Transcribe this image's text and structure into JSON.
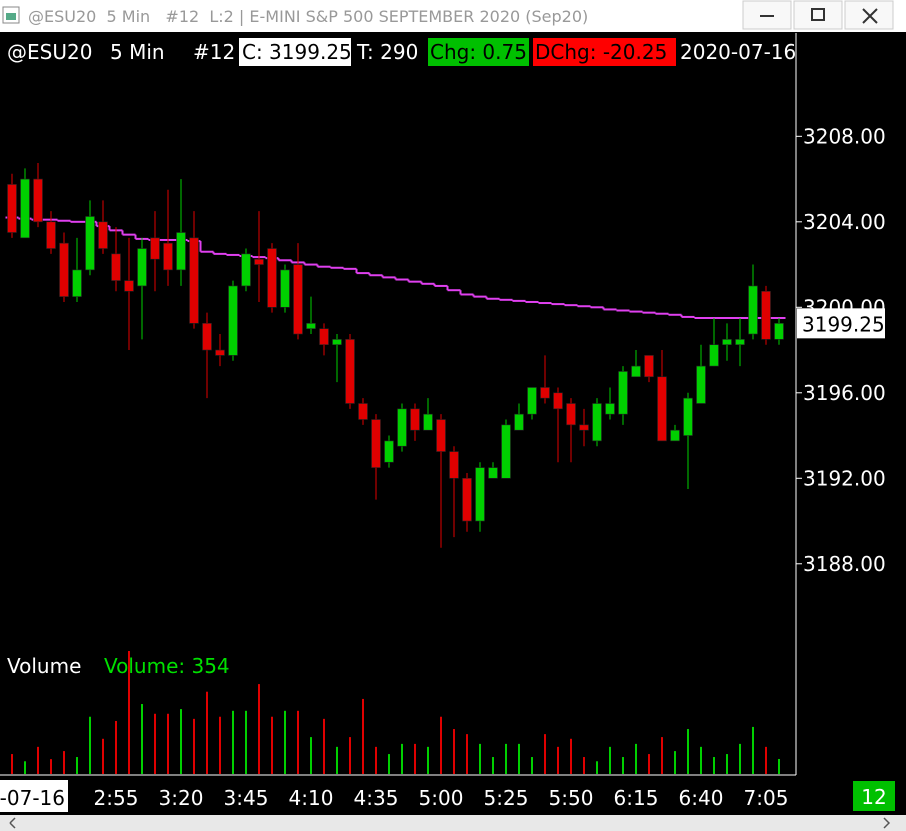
{
  "window_title": "@ESU20  5 Min   #12  L:2 | E-MINI S&P 500 SEPTEMBER 2020 (Sep20)",
  "chart_data": {
    "type": "candlestick",
    "symbol": "@ESU20",
    "interval": "5 Min",
    "chart_number": "#12",
    "close_label": "C: 3199.25",
    "ticks_label": "T: 290",
    "change_label": "Chg: 0.75",
    "dchange_label": "DChg: -20.25",
    "date": "2020-07-16",
    "categories": [
      null,
      null,
      null,
      null,
      null,
      null,
      null,
      null,
      "2:55",
      null,
      null,
      null,
      null,
      "3:20",
      null,
      null,
      null,
      null,
      "3:45",
      null,
      null,
      null,
      null,
      "4:10",
      null,
      null,
      null,
      null,
      "4:35",
      null,
      null,
      null,
      null,
      "5:00",
      null,
      null,
      null,
      null,
      "5:25",
      null,
      null,
      null,
      null,
      "5:50",
      null,
      null,
      null,
      null,
      "6:15",
      null,
      null,
      null,
      null,
      "6:40",
      null,
      null,
      null,
      null,
      "7:05",
      null
    ],
    "open": [
      3205.75,
      3203.25,
      3206,
      3204,
      3203,
      3200.5,
      3201.75,
      3204,
      3202.5,
      3201.25,
      3201,
      3203.25,
      3203,
      3201.75,
      3203.25,
      3199.25,
      3198,
      3197.75,
      3201,
      3202.25,
      3202.75,
      3200,
      3202,
      3199,
      3199,
      3198.25,
      3198.5,
      3195.5,
      3194.75,
      3192.75,
      3193.5,
      3195.25,
      3194.25,
      3194.75,
      3193.25,
      3192,
      3190,
      3192,
      3192,
      3194.25,
      3195,
      3196.25,
      3196,
      3195.5,
      3194.5,
      3193.75,
      3195,
      3195,
      3196.75,
      3197.75,
      3196.75,
      3193.75,
      3194,
      3195.5,
      3197.25,
      3198.25,
      3198.25,
      3198.75,
      3200.75,
      3198.5
    ],
    "high": [
      3206.25,
      3206.5,
      3206.75,
      3204.5,
      3203.5,
      3203.25,
      3205,
      3205,
      3203.75,
      3203.25,
      3203.25,
      3204.5,
      3205.5,
      3206,
      3204.5,
      3199.75,
      3198.75,
      3201.25,
      3202.75,
      3204.5,
      3203,
      3202,
      3203,
      3200.5,
      3199.25,
      3198.75,
      3198.75,
      3195.75,
      3195,
      3194,
      3195.5,
      3195.5,
      3195.75,
      3195,
      3193.5,
      3192.25,
      3192.75,
      3192.75,
      3194.75,
      3195.5,
      3196.25,
      3197.75,
      3196.25,
      3195.75,
      3195.25,
      3195.75,
      3196.25,
      3197.25,
      3198,
      3197.75,
      3198,
      3194.5,
      3196,
      3198.25,
      3199.5,
      3199.25,
      3199.5,
      3202,
      3201,
      3199.5
    ],
    "low": [
      3203.25,
      3203.25,
      3203.75,
      3202.5,
      3200.25,
      3200.25,
      3201.5,
      3202.5,
      3200.75,
      3198,
      3198.5,
      3200.75,
      3201,
      3201,
      3199,
      3195.75,
      3197.25,
      3197.5,
      3200.75,
      3200.25,
      3199.75,
      3199.75,
      3198.5,
      3198.75,
      3197.75,
      3196.5,
      3195.25,
      3194.5,
      3191,
      3192.5,
      3193.25,
      3193.75,
      3194.25,
      3188.75,
      3189.25,
      3189.5,
      3189.5,
      3192,
      3192,
      3194.25,
      3194.75,
      3195.5,
      3192.75,
      3192.75,
      3193.5,
      3193.5,
      3194.75,
      3194.5,
      3196.75,
      3196.5,
      3193.75,
      3193.75,
      3191.5,
      3195.5,
      3197.25,
      3197.5,
      3197.25,
      3198.5,
      3198.25,
      3198.25
    ],
    "close": [
      3203.5,
      3206,
      3204,
      3202.75,
      3200.5,
      3201.75,
      3204.25,
      3202.75,
      3201.25,
      3200.75,
      3202.75,
      3202.25,
      3201.75,
      3203.5,
      3199.25,
      3198,
      3197.75,
      3201,
      3202.5,
      3202,
      3200,
      3201.75,
      3198.75,
      3199.25,
      3198.25,
      3198.5,
      3195.5,
      3194.75,
      3192.5,
      3193.75,
      3195.25,
      3194.25,
      3195,
      3193.25,
      3192,
      3190,
      3192.5,
      3192.5,
      3194.5,
      3195,
      3196.25,
      3195.75,
      3195.25,
      3194.5,
      3194.25,
      3195.5,
      3195.5,
      3197,
      3197.25,
      3196.75,
      3193.75,
      3194.25,
      3195.75,
      3197.25,
      3198.25,
      3198.5,
      3198.5,
      3201,
      3198.5,
      3199.25
    ],
    "up_color": "#00d000",
    "down_color": "#e00000",
    "ylim": [
      3184.2,
      3212.6
    ],
    "yticks": [
      {
        "value": 3188,
        "label": "3188.00"
      },
      {
        "value": 3192,
        "label": "3192.00"
      },
      {
        "value": 3196,
        "label": "3196.00"
      },
      {
        "value": 3200,
        "label": "3200.00"
      },
      {
        "value": 3204,
        "label": "3204.00"
      },
      {
        "value": 3208,
        "label": "3208.00"
      }
    ],
    "last_price_label": "3199.25",
    "ma": {
      "color": "#e040f0",
      "values": [
        3204.2,
        3204.15,
        3204.1,
        3204.1,
        3204.05,
        3204,
        3204,
        3203.8,
        3203.6,
        3203.4,
        3203.2,
        3203.15,
        3203.15,
        3203.15,
        3203.1,
        3202.6,
        3202.5,
        3202.45,
        3202.4,
        3202.35,
        3202.3,
        3202.2,
        3202.1,
        3202,
        3201.9,
        3201.85,
        3201.8,
        3201.6,
        3201.5,
        3201.4,
        3201.3,
        3201.2,
        3201.1,
        3201,
        3200.8,
        3200.6,
        3200.5,
        3200.4,
        3200.35,
        3200.3,
        3200.25,
        3200.2,
        3200.15,
        3200.1,
        3200.05,
        3200,
        3199.9,
        3199.85,
        3199.8,
        3199.75,
        3199.7,
        3199.65,
        3199.55,
        3199.5,
        3199.5,
        3199.5,
        3199.5,
        3199.5,
        3199.5,
        3199.5
      ]
    },
    "volume": {
      "title": "Volume",
      "label": "Volume: 354",
      "label_color": "#00e000",
      "values": [
        470,
        300,
        640,
        350,
        540,
        400,
        1350,
        830,
        1250,
        2900,
        1650,
        1420,
        1420,
        1530,
        1300,
        1940,
        1350,
        1490,
        1490,
        2120,
        1350,
        1490,
        1490,
        870,
        1300,
        640,
        870,
        1770,
        640,
        470,
        710,
        710,
        640,
        1350,
        1060,
        940,
        710,
        400,
        710,
        710,
        400,
        940,
        640,
        830,
        400,
        300,
        640,
        400,
        710,
        470,
        870,
        540,
        1060,
        640,
        400,
        470,
        710,
        1110,
        640,
        354
      ]
    },
    "bar_count_label": "12"
  }
}
